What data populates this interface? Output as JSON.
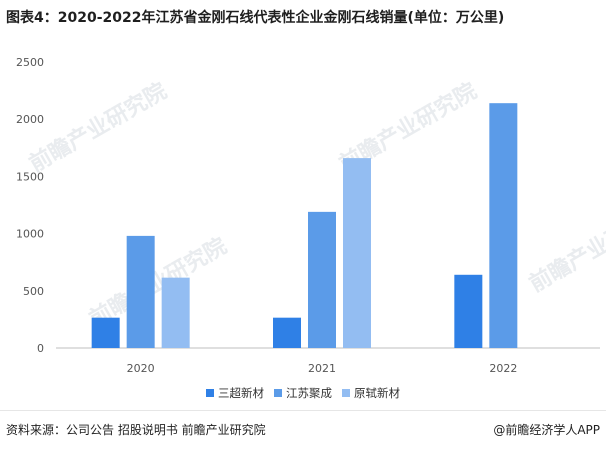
{
  "title": "图表4：2020-2022年江苏省金刚石线代表性企业金刚石线销量(单位：万公里)",
  "footer": {
    "source": "资料来源：公司公告 招股说明书 前瞻产业研究院",
    "brand": "@前瞻经济学人APP"
  },
  "watermark": "前瞻产业研究院",
  "chart_data": {
    "type": "bar",
    "title": "图表4：2020-2022年江苏省金刚石线代表性企业金刚石线销量(单位：万公里)",
    "categories": [
      "2020",
      "2021",
      "2022"
    ],
    "series": [
      {
        "name": "三超新材",
        "color": "#2f80e6",
        "values": [
          265,
          265,
          640
        ]
      },
      {
        "name": "江苏聚成",
        "color": "#5b9be8",
        "values": [
          980,
          1190,
          2140
        ]
      },
      {
        "name": "原轼新材",
        "color": "#93bdf2",
        "values": [
          615,
          1660,
          null
        ]
      }
    ],
    "ylim": [
      0,
      2500
    ],
    "yticks": [
      0,
      500,
      1000,
      1500,
      2000,
      2500
    ],
    "ytick_labels": [
      "0",
      "500",
      "1000",
      "1500",
      "2000",
      "2500"
    ],
    "grid": false,
    "legend_position": "bottom"
  }
}
